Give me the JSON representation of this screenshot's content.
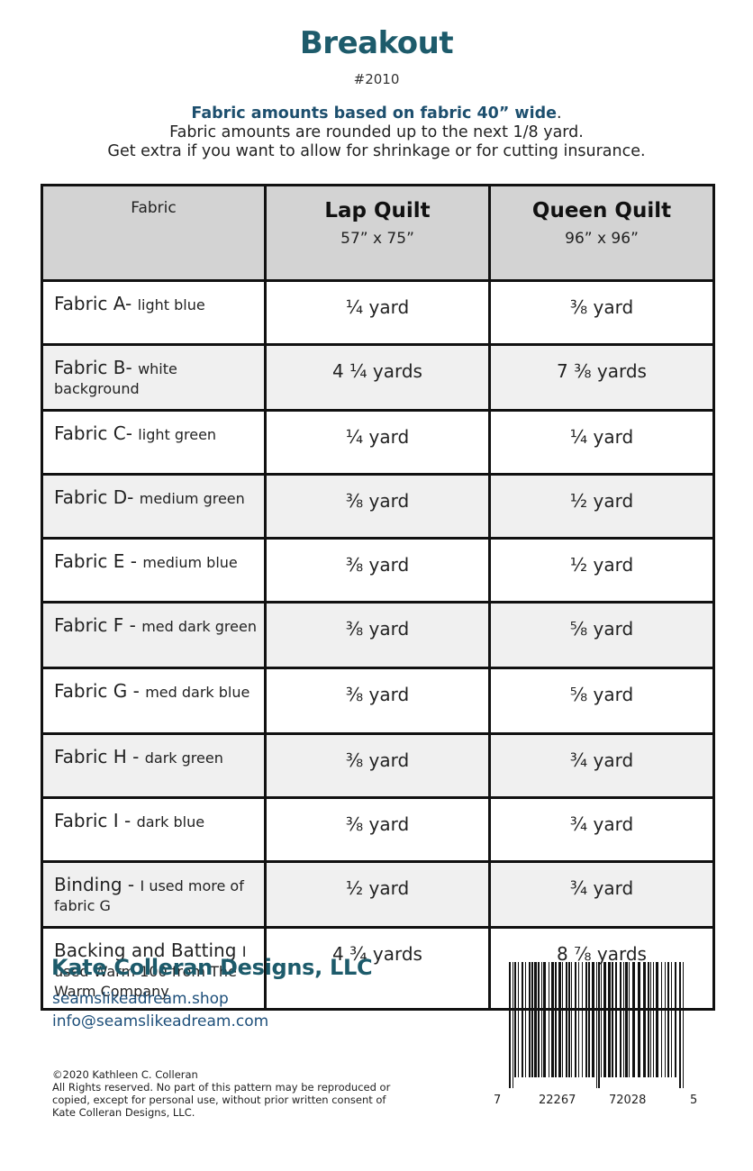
{
  "title": "Breakout",
  "pattern_number": "#2010",
  "intro": {
    "bold": "Fabric amounts based on fabric 40” wide",
    "bold_suffix": ".",
    "line2": "Fabric amounts are rounded up to the next 1/8 yard.",
    "line3": "Get extra if you want to allow for shrinkage or for cutting insurance."
  },
  "table": {
    "header_fabric": "Fabric",
    "quilts": [
      {
        "name": "Lap Quilt",
        "size": "57” x 75”"
      },
      {
        "name": "Queen Quilt",
        "size": "96” x 96”"
      }
    ],
    "rows": [
      {
        "name": "Fabric A-",
        "desc": "light blue",
        "lap": "¼ yard",
        "queen": "⅜ yard"
      },
      {
        "name": "Fabric B-",
        "desc": "white background",
        "lap": "4 ¼ yards",
        "queen": "7 ⅜ yards"
      },
      {
        "name": "Fabric C-",
        "desc": "light green",
        "lap": "¼ yard",
        "queen": "¼ yard"
      },
      {
        "name": "Fabric D-",
        "desc": "medium green",
        "lap": "⅜ yard",
        "queen": "½ yard"
      },
      {
        "name": "Fabric E -",
        "desc": "medium blue",
        "lap": "⅜ yard",
        "queen": "½ yard"
      },
      {
        "name": "Fabric F -",
        "desc": "med dark green",
        "lap": "⅜ yard",
        "queen": "⅝ yard"
      },
      {
        "name": "Fabric G -",
        "desc": "med dark blue",
        "lap": "⅜ yard",
        "queen": "⅝ yard"
      },
      {
        "name": "Fabric H -",
        "desc": "dark green",
        "lap": "⅜ yard",
        "queen": "¾ yard"
      },
      {
        "name": "Fabric I -",
        "desc": "dark blue",
        "lap": "⅜ yard",
        "queen": "¾ yard"
      },
      {
        "name": "Binding -",
        "desc": "I used more of fabric G",
        "lap": "½ yard",
        "queen": "¾ yard"
      },
      {
        "name": "Backing and Batting",
        "desc": "I used Warm 100 from The Warm Company",
        "lap": "4 ¾ yards",
        "queen": "8 ⅞ yards"
      }
    ]
  },
  "footer": {
    "company": "Kate Colleran Designs, LLC",
    "website": "seamslikeadream.shop",
    "email": "info@seamslikeadream.com",
    "copyright": "©2020 Kathleen C. Colleran",
    "rights": "All Rights reserved. No part of this pattern may be reproduced or copied, except for personal use,  without prior written consent of Kate Colleran Designs, LLC."
  },
  "barcode": {
    "digits": [
      "7",
      "22267",
      "72028",
      "5"
    ]
  },
  "colors": {
    "title": "#1d5b6b",
    "link": "#1d4f7a",
    "header_bg": "#d3d3d3",
    "alt_row_bg": "#f0f0f0"
  }
}
